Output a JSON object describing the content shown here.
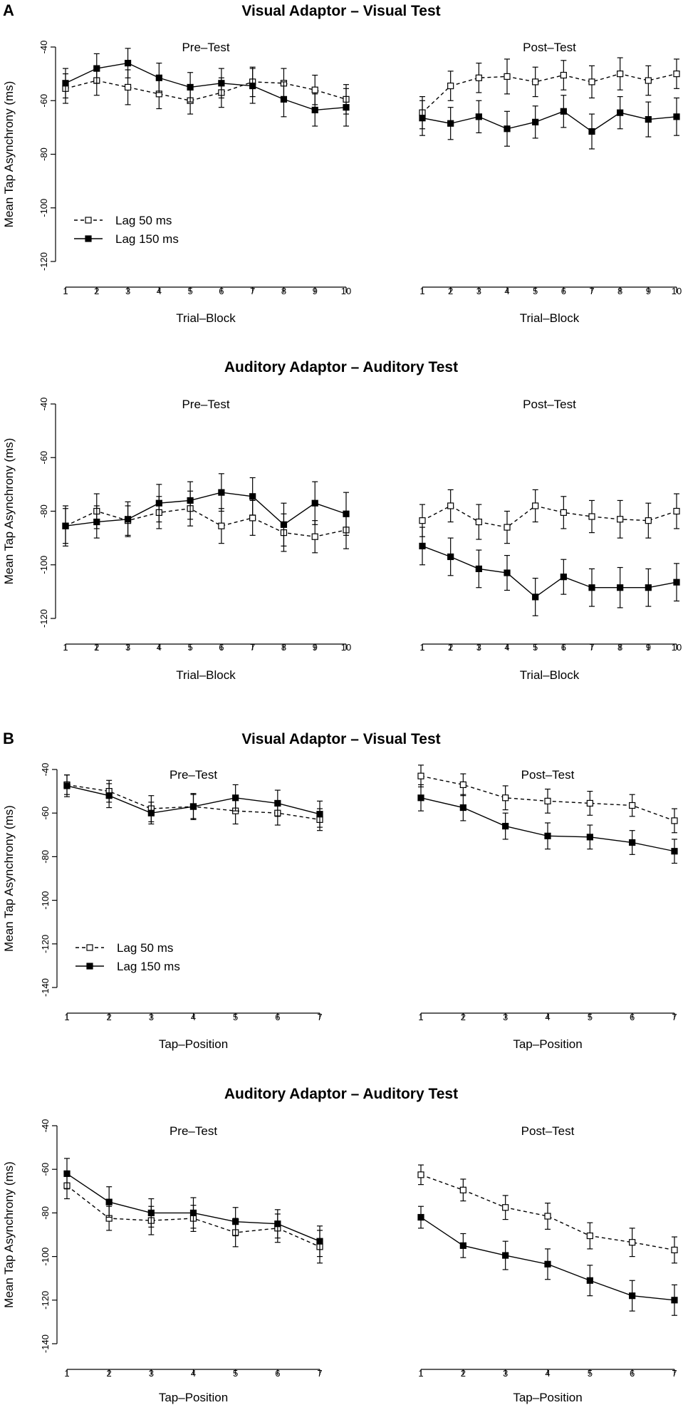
{
  "figure": {
    "panel_labels": [
      "A",
      "B"
    ]
  },
  "legend": {
    "lag50_label": "Lag 50 ms",
    "lag150_label": "Lag 150 ms"
  },
  "chart_data": [
    {
      "type": "line",
      "panel": "A",
      "title": "Visual Adaptor – Visual Test",
      "subtitle": "Pre–Test",
      "xlabel": "Trial–Block",
      "ylabel": "Mean Tap Asynchrony (ms)",
      "x": [
        1,
        2,
        3,
        4,
        5,
        6,
        7,
        8,
        9,
        10
      ],
      "ylim": [
        -120,
        -40
      ],
      "yticks": [
        -40,
        -60,
        -80,
        -100,
        -120
      ],
      "legend": true,
      "series": [
        {
          "name": "Lag 50 ms",
          "style": "dashed",
          "marker": "open-square",
          "values": [
            -55.5,
            -52.5,
            -55,
            -57.5,
            -60,
            -57,
            -53,
            -53.5,
            -56,
            -59.5
          ],
          "errors": [
            5.5,
            5.5,
            6.5,
            5.5,
            5,
            5.5,
            5.5,
            5.5,
            5.5,
            5.5
          ]
        },
        {
          "name": "Lag 150 ms",
          "style": "solid",
          "marker": "filled-square",
          "values": [
            -53.5,
            -48,
            -46,
            -51.5,
            -55,
            -53.5,
            -54.5,
            -59.5,
            -63.5,
            -62.5
          ],
          "errors": [
            5.5,
            5.5,
            5.5,
            5.5,
            5.5,
            5.5,
            6.5,
            6.5,
            6,
            7
          ]
        }
      ]
    },
    {
      "type": "line",
      "panel": "A",
      "title": "",
      "subtitle": "Post–Test",
      "xlabel": "Trial–Block",
      "ylabel": "",
      "x": [
        1,
        2,
        3,
        4,
        5,
        6,
        7,
        8,
        9,
        10
      ],
      "ylim": [
        -120,
        -40
      ],
      "yticks": [],
      "legend": false,
      "series": [
        {
          "name": "Lag 50 ms",
          "style": "dashed",
          "marker": "open-square",
          "values": [
            -64.5,
            -54.5,
            -51.5,
            -51,
            -53,
            -50.5,
            -53,
            -50,
            -52.5,
            -50
          ],
          "errors": [
            6,
            5.5,
            5.5,
            6.5,
            5.5,
            5.5,
            6,
            6,
            5.5,
            5.5
          ]
        },
        {
          "name": "Lag 150 ms",
          "style": "solid",
          "marker": "filled-square",
          "values": [
            -66.5,
            -68.5,
            -66,
            -70.5,
            -68,
            -64,
            -71.5,
            -64.5,
            -67,
            -66
          ],
          "errors": [
            6.5,
            6,
            6,
            6.5,
            6,
            6,
            6.5,
            6,
            6.5,
            7
          ]
        }
      ]
    },
    {
      "type": "line",
      "panel": "A",
      "title": "Auditory Adaptor – Auditory Test",
      "subtitle": "Pre–Test",
      "xlabel": "Trial–Block",
      "ylabel": "Mean Tap Asynchrony (ms)",
      "x": [
        1,
        2,
        3,
        4,
        5,
        6,
        7,
        8,
        9,
        10
      ],
      "ylim": [
        -120,
        -40
      ],
      "yticks": [
        -40,
        -60,
        -80,
        -100,
        -120
      ],
      "legend": false,
      "series": [
        {
          "name": "Lag 50 ms",
          "style": "dashed",
          "marker": "open-square",
          "values": [
            -85.5,
            -80,
            -83.5,
            -80.5,
            -79,
            -85.5,
            -82.5,
            -88,
            -89.5,
            -87
          ],
          "errors": [
            6.5,
            6.5,
            5.5,
            6,
            6.5,
            6.5,
            6.5,
            7,
            6,
            7
          ]
        },
        {
          "name": "Lag 150 ms",
          "style": "solid",
          "marker": "filled-square",
          "values": [
            -85.5,
            -84,
            -83,
            -77,
            -76,
            -73,
            -74.5,
            -85,
            -77,
            -81
          ],
          "errors": [
            7.5,
            6,
            6.5,
            7,
            7,
            7,
            7,
            8,
            8,
            8
          ]
        }
      ]
    },
    {
      "type": "line",
      "panel": "A",
      "title": "",
      "subtitle": "Post–Test",
      "xlabel": "Trial–Block",
      "ylabel": "",
      "x": [
        1,
        2,
        3,
        4,
        5,
        6,
        7,
        8,
        9,
        10
      ],
      "ylim": [
        -120,
        -40
      ],
      "yticks": [],
      "legend": false,
      "series": [
        {
          "name": "Lag 50 ms",
          "style": "dashed",
          "marker": "open-square",
          "values": [
            -83.5,
            -78,
            -84,
            -86,
            -78,
            -80.5,
            -82,
            -83,
            -83.5,
            -80
          ],
          "errors": [
            6,
            6,
            6.5,
            6,
            6,
            6,
            6,
            7,
            6.5,
            6.5
          ]
        },
        {
          "name": "Lag 150 ms",
          "style": "solid",
          "marker": "filled-square",
          "values": [
            -93,
            -97,
            -101.5,
            -103,
            -112,
            -104.5,
            -108.5,
            -108.5,
            -108.5,
            -106.5
          ],
          "errors": [
            7,
            7,
            7,
            6.5,
            7,
            6.5,
            7,
            7.5,
            7,
            7
          ]
        }
      ]
    },
    {
      "type": "line",
      "panel": "B",
      "title": "Visual Adaptor – Visual Test",
      "subtitle": "Pre–Test",
      "xlabel": "Tap–Position",
      "ylabel": "Mean Tap Asynchrony (ms)",
      "x": [
        1,
        2,
        3,
        4,
        5,
        6,
        7
      ],
      "ylim": [
        -140,
        -40
      ],
      "yticks": [
        -40,
        -60,
        -80,
        -100,
        -120,
        -140
      ],
      "legend": true,
      "series": [
        {
          "name": "Lag 50 ms",
          "style": "dashed",
          "marker": "open-square",
          "values": [
            -47,
            -50,
            -58,
            -57,
            -59,
            -60,
            -63
          ],
          "errors": [
            4.5,
            5,
            6,
            5.5,
            6,
            5.5,
            5
          ]
        },
        {
          "name": "Lag 150 ms",
          "style": "solid",
          "marker": "filled-square",
          "values": [
            -47.5,
            -52,
            -60,
            -57,
            -53,
            -55.5,
            -60.5
          ],
          "errors": [
            5,
            5.5,
            5,
            6,
            6,
            6,
            6
          ]
        }
      ]
    },
    {
      "type": "line",
      "panel": "B",
      "title": "",
      "subtitle": "Post–Test",
      "xlabel": "Tap–Position",
      "ylabel": "",
      "x": [
        1,
        2,
        3,
        4,
        5,
        6,
        7
      ],
      "ylim": [
        -140,
        -40
      ],
      "yticks": [],
      "legend": false,
      "series": [
        {
          "name": "Lag 50 ms",
          "style": "dashed",
          "marker": "open-square",
          "values": [
            -43,
            -47,
            -53,
            -54.5,
            -55.5,
            -56.5,
            -63.5
          ],
          "errors": [
            5,
            5,
            5.5,
            5.5,
            5.5,
            5,
            5.5
          ]
        },
        {
          "name": "Lag 150 ms",
          "style": "solid",
          "marker": "filled-square",
          "values": [
            -53,
            -57.5,
            -66,
            -70.5,
            -71,
            -73.5,
            -77.5
          ],
          "errors": [
            6,
            6,
            6,
            6,
            5.5,
            5.5,
            5.5
          ]
        }
      ]
    },
    {
      "type": "line",
      "panel": "B",
      "title": "Auditory Adaptor – Auditory Test",
      "subtitle": "Pre–Test",
      "xlabel": "Tap–Position",
      "ylabel": "Mean Tap Asynchrony (ms)",
      "x": [
        1,
        2,
        3,
        4,
        5,
        6,
        7
      ],
      "ylim": [
        -140,
        -40
      ],
      "yticks": [
        -40,
        -60,
        -80,
        -100,
        -120,
        -140
      ],
      "legend": false,
      "series": [
        {
          "name": "Lag 50 ms",
          "style": "dashed",
          "marker": "open-square",
          "values": [
            -67.5,
            -82.5,
            -83.5,
            -82.5,
            -89,
            -87,
            -95.5
          ],
          "errors": [
            6,
            5.5,
            6.5,
            6,
            6.5,
            6.5,
            7.5
          ]
        },
        {
          "name": "Lag 150 ms",
          "style": "solid",
          "marker": "filled-square",
          "values": [
            -62,
            -75,
            -80,
            -80,
            -84,
            -85,
            -93
          ],
          "errors": [
            7,
            7,
            6.5,
            7,
            6.5,
            6.5,
            7
          ]
        }
      ]
    },
    {
      "type": "line",
      "panel": "B",
      "title": "",
      "subtitle": "Post–Test",
      "xlabel": "Tap–Position",
      "ylabel": "",
      "x": [
        1,
        2,
        3,
        4,
        5,
        6,
        7
      ],
      "ylim": [
        -140,
        -40
      ],
      "yticks": [],
      "legend": false,
      "series": [
        {
          "name": "Lag 50 ms",
          "style": "dashed",
          "marker": "open-square",
          "values": [
            -62.5,
            -69.5,
            -77.5,
            -81.5,
            -90.5,
            -93.5,
            -97
          ],
          "errors": [
            4.5,
            5,
            5.5,
            6,
            6,
            6.5,
            6
          ]
        },
        {
          "name": "Lag 150 ms",
          "style": "solid",
          "marker": "filled-square",
          "values": [
            -82,
            -95,
            -99.5,
            -103.5,
            -111,
            -118,
            -120
          ],
          "errors": [
            5,
            5.5,
            6.5,
            7,
            7,
            7,
            7
          ]
        }
      ]
    }
  ]
}
